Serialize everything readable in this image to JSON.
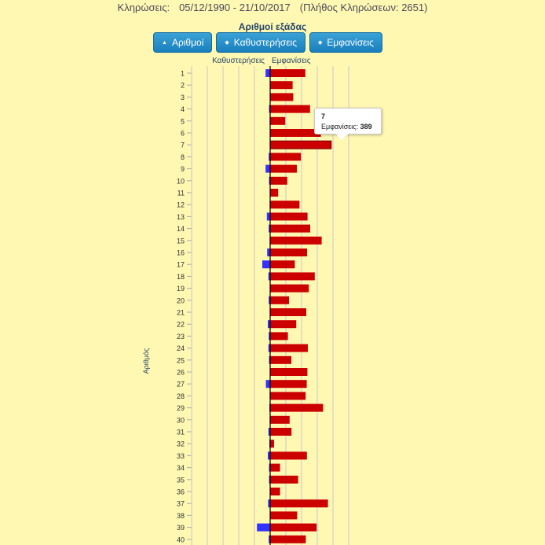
{
  "header": {
    "label": "Κληρώσεις:",
    "range": "05/12/1990 - 21/10/2017",
    "count": "(Πλήθος Κληρώσεων: 2651)"
  },
  "chart_title": "Αριθμοί εξάδας",
  "sort_buttons": [
    {
      "label": "Αριθμοί"
    },
    {
      "label": "Καθυστερήσεις"
    },
    {
      "label": "Εμφανίσεις"
    }
  ],
  "tooltip": {
    "number": "7",
    "label": "Εμφανίσεις:",
    "value": "389"
  },
  "colors": {
    "delays": "#3333ff",
    "appearances": "#cc0000",
    "background": "#fff8b2"
  },
  "chart_data": {
    "type": "bar",
    "orientation": "horizontal",
    "ylabel": "Αριθμός",
    "series": [
      {
        "name": "Καθυστερήσεις",
        "values": [
          29,
          1,
          1,
          7,
          3,
          1,
          2,
          9,
          29,
          7,
          1,
          3,
          21,
          9,
          3,
          19,
          50,
          11,
          2,
          9,
          2,
          15,
          9,
          11,
          7,
          1,
          27,
          3,
          5,
          3,
          11,
          5,
          15,
          7,
          7,
          1,
          13,
          1,
          84,
          9
        ]
      },
      {
        "name": "Εμφανίσεις",
        "values": [
          224,
          143,
          147,
          254,
          96,
          323,
          389,
          196,
          170,
          109,
          51,
          187,
          238,
          255,
          328,
          235,
          157,
          284,
          246,
          120,
          230,
          166,
          113,
          240,
          135,
          237,
          233,
          226,
          337,
          124,
          136,
          25,
          234,
          63,
          178,
          63,
          368,
          172,
          296,
          227
        ]
      }
    ],
    "categories": [
      "1",
      "2",
      "3",
      "4",
      "5",
      "6",
      "7",
      "8",
      "9",
      "10",
      "11",
      "12",
      "13",
      "14",
      "15",
      "16",
      "17",
      "18",
      "19",
      "20",
      "21",
      "22",
      "23",
      "24",
      "25",
      "26",
      "27",
      "28",
      "29",
      "30",
      "31",
      "32",
      "33",
      "34",
      "35",
      "36",
      "37",
      "38",
      "39",
      "40"
    ]
  }
}
